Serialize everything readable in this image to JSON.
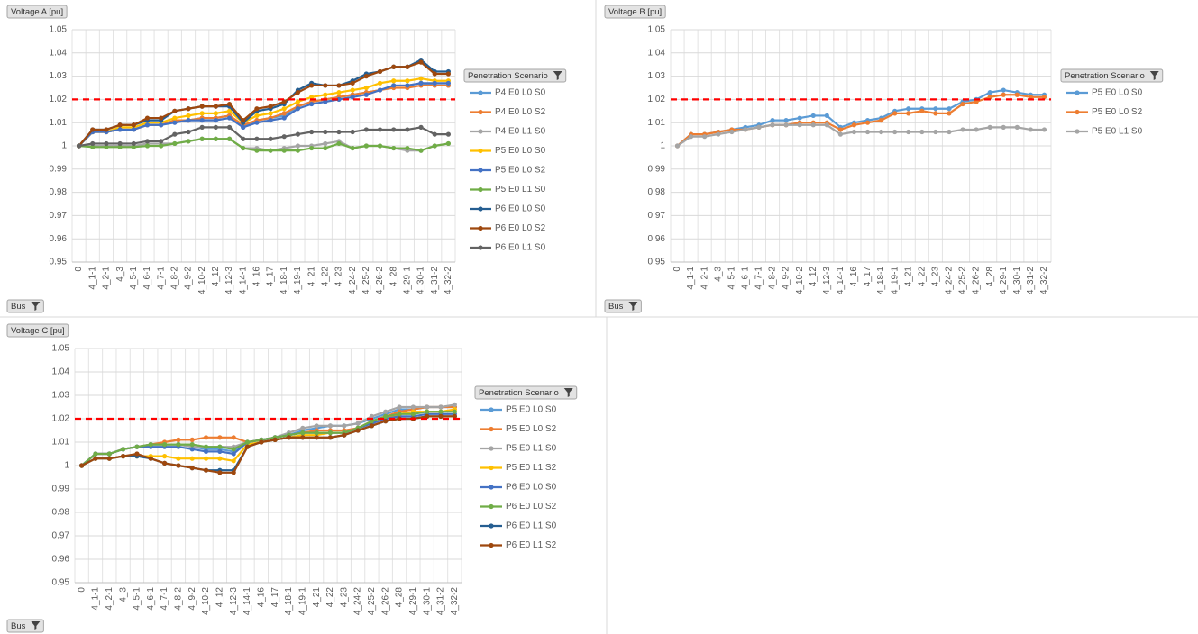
{
  "chart_data": [
    {
      "type": "line",
      "title": "Voltage A [pu]",
      "x_label": "Bus",
      "legend_title": "Penetration Scenario",
      "categories": [
        "0",
        "4_1-1",
        "4_2-1",
        "4_3",
        "4_5-1",
        "4_6-1",
        "4_7-1",
        "4_8-2",
        "4_9-2",
        "4_10-2",
        "4_12",
        "4_12-3",
        "4_14-1",
        "4_16",
        "4_17",
        "4_18-1",
        "4_19-1",
        "4_21",
        "4_22",
        "4_23",
        "4_24-2",
        "4_25-2",
        "4_26-2",
        "4_28",
        "4_29-1",
        "4_30-1",
        "4_31-2",
        "4_32-2"
      ],
      "ylim": [
        0.95,
        1.05
      ],
      "yticks": [
        0.95,
        0.96,
        0.97,
        0.98,
        0.99,
        1,
        1.01,
        1.02,
        1.03,
        1.04,
        1.05
      ],
      "grid": true,
      "reference_line": 1.02,
      "reference_color": "#ff0000",
      "series": [
        {
          "name": "P4 E0 L0 S0",
          "color": "#5b9bd5",
          "values": [
            1.0,
            1.006,
            1.006,
            1.007,
            1.007,
            1.009,
            1.009,
            1.011,
            1.011,
            1.012,
            1.012,
            1.013,
            1.008,
            1.011,
            1.012,
            1.013,
            1.017,
            1.019,
            1.02,
            1.021,
            1.022,
            1.023,
            1.024,
            1.026,
            1.026,
            1.027,
            1.026,
            1.026
          ]
        },
        {
          "name": "P4 E0 L0 S2",
          "color": "#ed7d31",
          "values": [
            1.0,
            1.006,
            1.006,
            1.007,
            1.007,
            1.009,
            1.009,
            1.011,
            1.011,
            1.012,
            1.012,
            1.013,
            1.009,
            1.011,
            1.012,
            1.014,
            1.017,
            1.019,
            1.02,
            1.021,
            1.022,
            1.023,
            1.024,
            1.025,
            1.025,
            1.026,
            1.026,
            1.026
          ]
        },
        {
          "name": "P4 E0 L1 S0",
          "color": "#a5a5a5",
          "values": [
            1.0,
            1.0,
            1.0,
            1.0,
            1.0,
            1.001,
            1.001,
            1.001,
            1.002,
            1.003,
            1.003,
            1.003,
            0.999,
            0.999,
            0.998,
            0.999,
            1.0,
            1.0,
            1.001,
            1.002,
            0.999,
            1.0,
            1.0,
            0.999,
            0.998,
            0.998,
            1.0,
            1.001
          ]
        },
        {
          "name": "P5 E0 L0 S0",
          "color": "#ffc000",
          "values": [
            1.0,
            1.006,
            1.006,
            1.008,
            1.008,
            1.01,
            1.01,
            1.012,
            1.013,
            1.014,
            1.014,
            1.015,
            1.01,
            1.013,
            1.014,
            1.016,
            1.019,
            1.021,
            1.022,
            1.023,
            1.024,
            1.025,
            1.027,
            1.028,
            1.028,
            1.029,
            1.028,
            1.028
          ]
        },
        {
          "name": "P5 E0 L0 S2",
          "color": "#4472c4",
          "values": [
            1.0,
            1.006,
            1.006,
            1.007,
            1.007,
            1.009,
            1.009,
            1.01,
            1.011,
            1.011,
            1.011,
            1.012,
            1.008,
            1.01,
            1.011,
            1.012,
            1.016,
            1.018,
            1.019,
            1.02,
            1.021,
            1.022,
            1.024,
            1.026,
            1.026,
            1.027,
            1.027,
            1.027
          ]
        },
        {
          "name": "P5 E0 L1 S0",
          "color": "#70ad47",
          "values": [
            1.0,
            0.9995,
            0.9995,
            0.9995,
            0.9995,
            1.0,
            1.0,
            1.001,
            1.002,
            1.003,
            1.003,
            1.003,
            0.999,
            0.998,
            0.998,
            0.998,
            0.998,
            0.999,
            0.999,
            1.001,
            0.999,
            1.0,
            1.0,
            0.999,
            0.999,
            0.998,
            1.0,
            1.001
          ]
        },
        {
          "name": "P6 E0 L0 S0",
          "color": "#255e91",
          "values": [
            1.0,
            1.007,
            1.007,
            1.009,
            1.009,
            1.011,
            1.011,
            1.015,
            1.016,
            1.017,
            1.017,
            1.017,
            1.01,
            1.015,
            1.016,
            1.018,
            1.024,
            1.027,
            1.026,
            1.026,
            1.028,
            1.031,
            1.032,
            1.034,
            1.034,
            1.037,
            1.032,
            1.032
          ]
        },
        {
          "name": "P6 E0 L0 S2",
          "color": "#9e480e",
          "values": [
            1.0,
            1.007,
            1.007,
            1.009,
            1.009,
            1.012,
            1.012,
            1.015,
            1.016,
            1.017,
            1.017,
            1.018,
            1.011,
            1.016,
            1.017,
            1.019,
            1.023,
            1.026,
            1.026,
            1.026,
            1.027,
            1.03,
            1.032,
            1.034,
            1.034,
            1.036,
            1.031,
            1.031
          ]
        },
        {
          "name": "P6 E0 L1 S0",
          "color": "#636363",
          "values": [
            1.0,
            1.001,
            1.001,
            1.001,
            1.001,
            1.002,
            1.002,
            1.005,
            1.006,
            1.008,
            1.008,
            1.008,
            1.003,
            1.003,
            1.003,
            1.004,
            1.005,
            1.006,
            1.006,
            1.006,
            1.006,
            1.007,
            1.007,
            1.007,
            1.007,
            1.008,
            1.005,
            1.005
          ]
        }
      ]
    },
    {
      "type": "line",
      "title": "Voltage B [pu]",
      "x_label": "Bus",
      "legend_title": "Penetration Scenario",
      "categories": [
        "0",
        "4_1-1",
        "4_2-1",
        "4_3",
        "4_5-1",
        "4_6-1",
        "4_7-1",
        "4_8-2",
        "4_9-2",
        "4_10-2",
        "4_12",
        "4_12-3",
        "4_14-1",
        "4_16",
        "4_17",
        "4_18-1",
        "4_19-1",
        "4_21",
        "4_22",
        "4_23",
        "4_24-2",
        "4_25-2",
        "4_26-2",
        "4_28",
        "4_29-1",
        "4_30-1",
        "4_31-2",
        "4_32-2"
      ],
      "ylim": [
        0.95,
        1.05
      ],
      "yticks": [
        0.95,
        0.96,
        0.97,
        0.98,
        0.99,
        1,
        1.01,
        1.02,
        1.03,
        1.04,
        1.05
      ],
      "grid": true,
      "reference_line": 1.02,
      "reference_color": "#ff0000",
      "series": [
        {
          "name": "P5 E0 L0 S0",
          "color": "#5b9bd5",
          "values": [
            1.0,
            1.005,
            1.005,
            1.006,
            1.007,
            1.008,
            1.009,
            1.011,
            1.011,
            1.012,
            1.013,
            1.013,
            1.008,
            1.01,
            1.011,
            1.012,
            1.015,
            1.016,
            1.016,
            1.016,
            1.016,
            1.019,
            1.02,
            1.023,
            1.024,
            1.023,
            1.022,
            1.022
          ]
        },
        {
          "name": "P5 E0 L0 S2",
          "color": "#ed7d31",
          "values": [
            1.0,
            1.005,
            1.005,
            1.006,
            1.007,
            1.007,
            1.008,
            1.009,
            1.009,
            1.01,
            1.01,
            1.01,
            1.007,
            1.009,
            1.01,
            1.011,
            1.014,
            1.014,
            1.015,
            1.014,
            1.014,
            1.018,
            1.019,
            1.021,
            1.022,
            1.022,
            1.021,
            1.021
          ]
        },
        {
          "name": "P5 E0 L1 S0",
          "color": "#a5a5a5",
          "values": [
            1.0,
            1.004,
            1.004,
            1.005,
            1.006,
            1.007,
            1.008,
            1.009,
            1.009,
            1.009,
            1.009,
            1.009,
            1.005,
            1.006,
            1.006,
            1.006,
            1.006,
            1.006,
            1.006,
            1.006,
            1.006,
            1.007,
            1.007,
            1.008,
            1.008,
            1.008,
            1.007,
            1.007
          ]
        }
      ]
    },
    {
      "type": "line",
      "title": "Voltage C [pu]",
      "x_label": "Bus",
      "legend_title": "Penetration Scenario",
      "categories": [
        "0",
        "4_1-1",
        "4_2-1",
        "4_3",
        "4_5-1",
        "4_6-1",
        "4_7-1",
        "4_8-2",
        "4_9-2",
        "4_10-2",
        "4_12",
        "4_12-3",
        "4_14-1",
        "4_16",
        "4_17",
        "4_18-1",
        "4_19-1",
        "4_21",
        "4_22",
        "4_23",
        "4_24-2",
        "4_25-2",
        "4_26-2",
        "4_28",
        "4_29-1",
        "4_30-1",
        "4_31-2",
        "4_32-2"
      ],
      "ylim": [
        0.95,
        1.05
      ],
      "yticks": [
        0.95,
        0.96,
        0.97,
        0.98,
        0.99,
        1,
        1.01,
        1.02,
        1.03,
        1.04,
        1.05
      ],
      "grid": true,
      "reference_line": 1.02,
      "reference_color": "#ff0000",
      "series": [
        {
          "name": "P5 E0 L0 S0",
          "color": "#5b9bd5",
          "values": [
            1.0,
            1.005,
            1.005,
            1.007,
            1.008,
            1.009,
            1.009,
            1.009,
            1.008,
            1.007,
            1.007,
            1.006,
            1.01,
            1.011,
            1.012,
            1.013,
            1.015,
            1.016,
            1.017,
            1.017,
            1.018,
            1.02,
            1.022,
            1.024,
            1.024,
            1.025,
            1.025,
            1.025
          ]
        },
        {
          "name": "P5 E0 L0 S2",
          "color": "#ed7d31",
          "values": [
            1.0,
            1.005,
            1.005,
            1.007,
            1.008,
            1.009,
            1.01,
            1.011,
            1.011,
            1.012,
            1.012,
            1.012,
            1.01,
            1.011,
            1.012,
            1.013,
            1.014,
            1.015,
            1.015,
            1.015,
            1.016,
            1.019,
            1.021,
            1.023,
            1.024,
            1.025,
            1.025,
            1.025
          ]
        },
        {
          "name": "P5 E0 L1 S0",
          "color": "#a5a5a5",
          "values": [
            1.0,
            1.005,
            1.005,
            1.007,
            1.008,
            1.009,
            1.009,
            1.009,
            1.008,
            1.008,
            1.008,
            1.008,
            1.01,
            1.011,
            1.012,
            1.014,
            1.016,
            1.017,
            1.017,
            1.017,
            1.018,
            1.021,
            1.023,
            1.025,
            1.025,
            1.025,
            1.025,
            1.026
          ]
        },
        {
          "name": "P5 E0 L1 S2",
          "color": "#ffc000",
          "values": [
            1.0,
            1.003,
            1.003,
            1.004,
            1.004,
            1.004,
            1.004,
            1.003,
            1.003,
            1.003,
            1.003,
            1.002,
            1.009,
            1.01,
            1.011,
            1.012,
            1.013,
            1.013,
            1.014,
            1.014,
            1.016,
            1.018,
            1.02,
            1.022,
            1.023,
            1.023,
            1.023,
            1.024
          ]
        },
        {
          "name": "P6 E0 L0 S0",
          "color": "#4472c4",
          "values": [
            1.0,
            1.005,
            1.005,
            1.007,
            1.008,
            1.008,
            1.008,
            1.008,
            1.007,
            1.006,
            1.006,
            1.005,
            1.01,
            1.011,
            1.012,
            1.013,
            1.014,
            1.014,
            1.014,
            1.014,
            1.016,
            1.018,
            1.02,
            1.021,
            1.021,
            1.022,
            1.022,
            1.022
          ]
        },
        {
          "name": "P6 E0 L0 S2",
          "color": "#70ad47",
          "values": [
            1.0,
            1.005,
            1.005,
            1.007,
            1.008,
            1.009,
            1.009,
            1.009,
            1.009,
            1.008,
            1.008,
            1.007,
            1.01,
            1.011,
            1.012,
            1.013,
            1.014,
            1.014,
            1.014,
            1.014,
            1.016,
            1.019,
            1.021,
            1.022,
            1.022,
            1.023,
            1.023,
            1.023
          ]
        },
        {
          "name": "P6 E0 L1 S0",
          "color": "#255e91",
          "values": [
            1.0,
            1.003,
            1.003,
            1.004,
            1.004,
            1.003,
            1.001,
            1.0,
            0.999,
            0.998,
            0.998,
            0.998,
            1.008,
            1.01,
            1.011,
            1.012,
            1.012,
            1.012,
            1.012,
            1.013,
            1.015,
            1.017,
            1.019,
            1.02,
            1.02,
            1.021,
            1.021,
            1.021
          ]
        },
        {
          "name": "P6 E0 L1 S2",
          "color": "#9e480e",
          "values": [
            1.0,
            1.003,
            1.003,
            1.004,
            1.005,
            1.003,
            1.001,
            1.0,
            0.999,
            0.998,
            0.997,
            0.997,
            1.008,
            1.01,
            1.011,
            1.012,
            1.012,
            1.012,
            1.012,
            1.013,
            1.015,
            1.017,
            1.019,
            1.02,
            1.02,
            1.021,
            1.021,
            1.021
          ]
        }
      ]
    }
  ]
}
